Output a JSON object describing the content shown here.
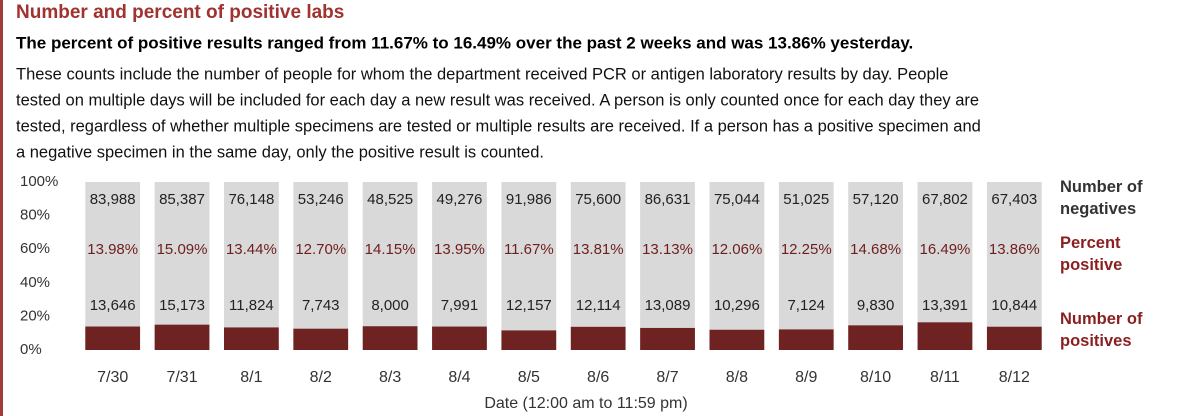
{
  "chart_data": {
    "type": "bar",
    "stacking": "percent",
    "title": "Number and percent of positive labs",
    "subtitle": "The percent of positive results ranged from 11.67% to 16.49% over the past 2 weeks and was 13.86% yesterday.",
    "description": [
      "These counts include the number of people for whom the department received PCR or antigen laboratory results by day. People",
      "tested on multiple days will be included for each day a new result was received. A person is only counted once for each day they are",
      "tested, regardless of whether multiple specimens are tested or multiple results are received. If a person has a positive specimen and",
      "a negative specimen in the same day, only the positive result is counted."
    ],
    "x_label": "Date (12:00 am to 11:59 pm)",
    "categories": [
      "7/30",
      "7/31",
      "8/1",
      "8/2",
      "8/3",
      "8/4",
      "8/5",
      "8/6",
      "8/7",
      "8/8",
      "8/9",
      "8/10",
      "8/11",
      "8/12"
    ],
    "series": [
      {
        "name": "Number of positives",
        "color": "#6e2222",
        "values": [
          13646,
          15173,
          11824,
          7743,
          8000,
          7991,
          12157,
          12114,
          13089,
          10296,
          7124,
          9830,
          13391,
          10844
        ],
        "value_labels": [
          "13,646",
          "15,173",
          "11,824",
          "7,743",
          "8,000",
          "7,991",
          "12,157",
          "12,114",
          "13,089",
          "10,296",
          "7,124",
          "9,830",
          "13,391",
          "10,844"
        ]
      },
      {
        "name": "Number of negatives",
        "color": "#d9d9d9",
        "values": [
          83988,
          85387,
          76148,
          53246,
          48525,
          49276,
          91986,
          75600,
          86631,
          75044,
          51025,
          57120,
          67802,
          67403
        ],
        "value_labels": [
          "83,988",
          "85,387",
          "76,148",
          "53,246",
          "48,525",
          "49,276",
          "91,986",
          "75,600",
          "86,631",
          "75,044",
          "51,025",
          "57,120",
          "67,802",
          "67,403"
        ]
      }
    ],
    "percent_positive": {
      "name": "Percent positive",
      "values": [
        13.98,
        15.09,
        13.44,
        12.7,
        14.15,
        13.95,
        11.67,
        13.81,
        13.13,
        12.06,
        12.25,
        14.68,
        16.49,
        13.86
      ],
      "value_labels": [
        "13.98%",
        "15.09%",
        "13.44%",
        "12.70%",
        "14.15%",
        "13.95%",
        "11.67%",
        "13.81%",
        "13.13%",
        "12.06%",
        "12.25%",
        "14.68%",
        "16.49%",
        "13.86%"
      ]
    },
    "ylim": [
      0,
      100
    ],
    "yticks": [
      {
        "value": 0,
        "label": "0%"
      },
      {
        "value": 20,
        "label": "20%"
      },
      {
        "value": 40,
        "label": "40%"
      },
      {
        "value": 60,
        "label": "60%"
      },
      {
        "value": 80,
        "label": "80%"
      },
      {
        "value": 100,
        "label": "100%"
      }
    ]
  }
}
